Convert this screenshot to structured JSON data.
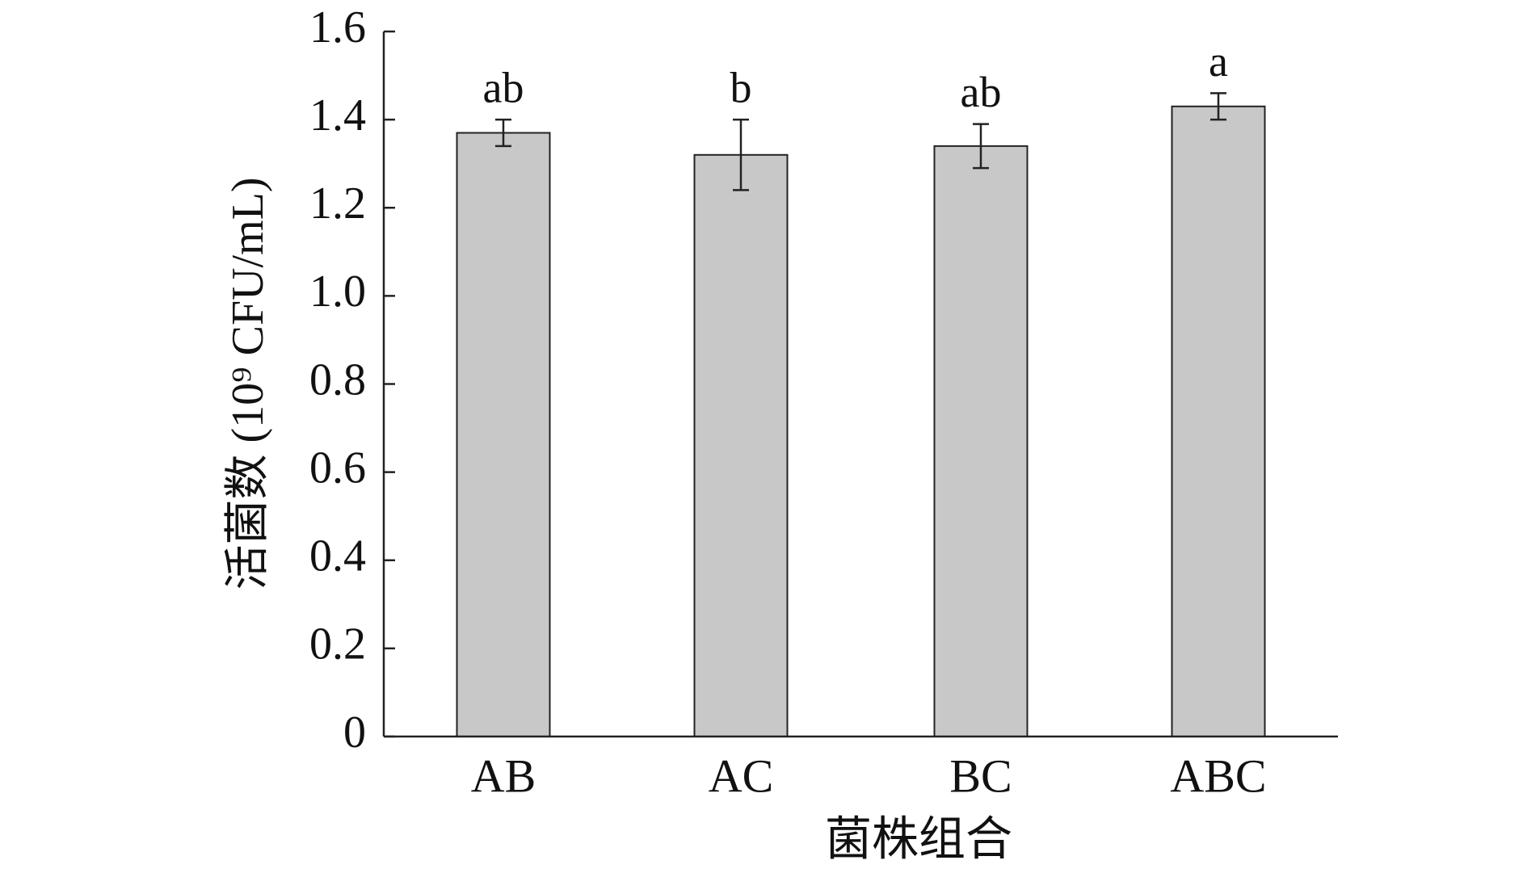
{
  "chart_data": {
    "type": "bar",
    "x_label": "菌株组合",
    "y_label": "活菌数 (10⁹ CFU/mL)",
    "categories": [
      "AB",
      "AC",
      "BC",
      "ABC"
    ],
    "values": [
      1.37,
      1.32,
      1.34,
      1.43
    ],
    "errors": [
      0.03,
      0.08,
      0.05,
      0.03
    ],
    "significance": [
      "ab",
      "b",
      "ab",
      "a"
    ],
    "color": "#c8c8c8",
    "ylim": [
      0,
      1.6
    ],
    "yticks": [
      0,
      0.2,
      0.4,
      0.6,
      0.8,
      {
        "value": 1,
        "label": "1.0"
      },
      1.2,
      1.4,
      1.6
    ],
    "grid": false
  }
}
